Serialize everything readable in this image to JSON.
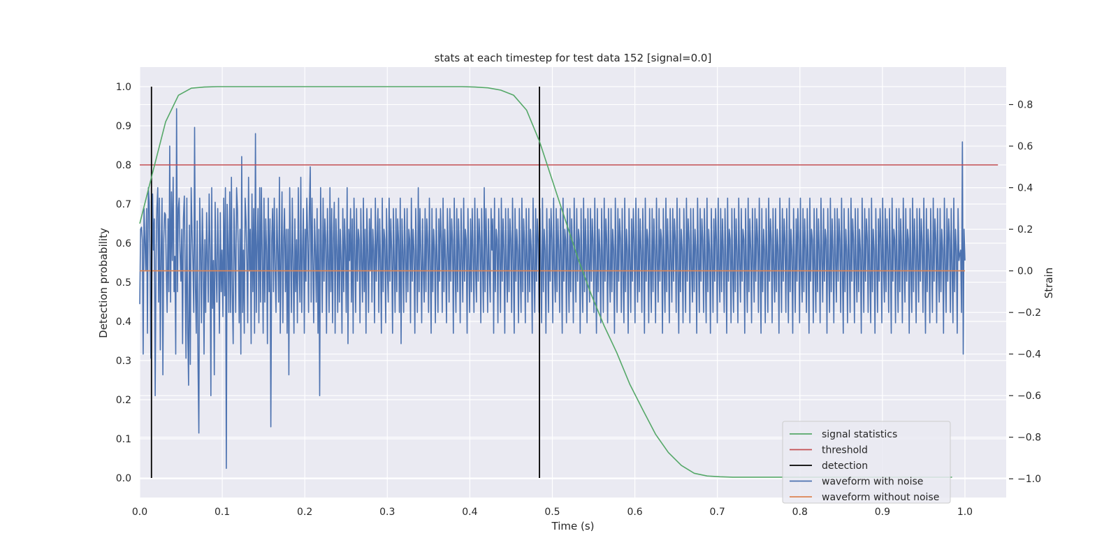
{
  "chart_data": {
    "type": "line",
    "title": "stats at each timestep for test data 152 [signal=0.0]",
    "xlabel": "Time (s)",
    "ylabel": "Detection probability",
    "y2label": "Strain",
    "xlim": [
      0.0,
      1.05
    ],
    "ylim": [
      -0.05,
      1.05
    ],
    "y2lim": [
      -1.09,
      0.98
    ],
    "xticks": [
      "0.0",
      "0.1",
      "0.2",
      "0.3",
      "0.4",
      "0.5",
      "0.6",
      "0.7",
      "0.8",
      "0.9",
      "1.0"
    ],
    "yticks": [
      "0.0",
      "0.1",
      "0.2",
      "0.3",
      "0.4",
      "0.5",
      "0.6",
      "0.7",
      "0.8",
      "0.9",
      "1.0"
    ],
    "y2ticks": [
      "−1.0",
      "−0.8",
      "−0.6",
      "−0.4",
      "−0.2",
      "0.0",
      "0.2",
      "0.4",
      "0.6",
      "0.8"
    ],
    "grid": true,
    "legend_position": "lower-right",
    "series": [
      {
        "name": "signal statistics",
        "axis": "left",
        "color": "#55a868",
        "x": [
          0.0,
          0.0156,
          0.0313,
          0.0469,
          0.0625,
          0.0781,
          0.0938,
          0.1094,
          0.125,
          0.1406,
          0.1563,
          0.1719,
          0.1875,
          0.2031,
          0.2188,
          0.2344,
          0.25,
          0.2656,
          0.2813,
          0.2969,
          0.3125,
          0.3281,
          0.3438,
          0.3594,
          0.375,
          0.3906,
          0.4063,
          0.4219,
          0.4375,
          0.4531,
          0.4688,
          0.4844,
          0.5,
          0.5156,
          0.5313,
          0.5469,
          0.5625,
          0.5781,
          0.5938,
          0.6094,
          0.625,
          0.6406,
          0.6563,
          0.6719,
          0.6875,
          0.7031,
          0.7188,
          0.7344,
          0.75,
          0.7656,
          0.7813,
          0.7969,
          0.8125,
          0.8281,
          0.8438,
          0.8594,
          0.875,
          0.8906,
          0.9063,
          0.9219,
          0.9375,
          0.9531,
          0.9688,
          0.9844
        ],
        "y": [
          0.65,
          0.78,
          0.91,
          0.978,
          0.996,
          0.999,
          1.0,
          1.0,
          1.0,
          1.0,
          1.0,
          1.0,
          1.0,
          1.0,
          1.0,
          1.0,
          1.0,
          1.0,
          1.0,
          1.0,
          1.0,
          1.0,
          1.0,
          1.0,
          1.0,
          1.0,
          0.999,
          0.997,
          0.991,
          0.978,
          0.94,
          0.86,
          0.76,
          0.66,
          0.56,
          0.47,
          0.39,
          0.32,
          0.24,
          0.175,
          0.112,
          0.065,
          0.032,
          0.012,
          0.005,
          0.003,
          0.002,
          0.002,
          0.002,
          0.002,
          0.002,
          0.002,
          0.002,
          0.002,
          0.002,
          0.002,
          0.002,
          0.002,
          0.002,
          0.002,
          0.002,
          0.002,
          0.002,
          0.002
        ]
      },
      {
        "name": "threshold",
        "axis": "left",
        "color": "#c44e52",
        "x": [
          0.0,
          1.04
        ],
        "y": [
          0.8,
          0.8
        ]
      },
      {
        "name": "detection",
        "axis": "left",
        "color": "#000000",
        "x_markers": [
          0.0142,
          0.4844
        ],
        "y_range": [
          0.0,
          1.0
        ]
      },
      {
        "name": "waveform with noise",
        "axis": "right",
        "color": "#4c72b0",
        "x_range": [
          0.0,
          1.0
        ],
        "y": [
          -0.16,
          0.2,
          0.21,
          0.15,
          -0.4,
          0.3,
          0.14,
          0.0,
          0.3,
          -0.3,
          0.4,
          0.33,
          0.07,
          -0.42,
          -0.1,
          0.37,
          0.1,
          0.25,
          -0.6,
          0.05,
          0.3,
          0.4,
          -0.15,
          0.35,
          -0.38,
          0.1,
          0.35,
          -0.5,
          0.15,
          0.28,
          0.27,
          0.0,
          -0.2,
          0.25,
          -0.1,
          0.6,
          -0.15,
          0.38,
          0.05,
          0.45,
          -0.1,
          0.07,
          -0.4,
          0.78,
          -0.1,
          0.3,
          0.35,
          0.1,
          -0.05,
          0.2,
          -0.35,
          0.25,
          0.36,
          -0.02,
          -0.42,
          0.35,
          -0.3,
          -0.55,
          0.22,
          -0.45,
          0.4,
          0.2,
          0.05,
          -0.2,
          0.69,
          -0.08,
          -0.3,
          0.24,
          -0.45,
          -0.78,
          0.35,
          0.1,
          -0.25,
          0.3,
          0.1,
          -0.4,
          0.15,
          -0.2,
          0.28,
          0.06,
          -0.15,
          0.37,
          0.1,
          -0.6,
          0.4,
          -0.18,
          0.05,
          -0.5,
          0.33,
          0.02,
          -0.15,
          0.3,
          0.05,
          -0.3,
          0.28,
          -0.1,
          0.1,
          -0.22,
          0.35,
          -0.12,
          0.4,
          -0.95,
          0.32,
          0.13,
          -0.2,
          0.38,
          -0.2,
          0.45,
          -0.1,
          -0.35,
          0.3,
          0.1,
          -0.2,
          0.4,
          0.3,
          0.1,
          -0.25,
          0.2,
          -0.4,
          0.55,
          -0.2,
          0.1,
          -0.3,
          0.35,
          0.24,
          0.05,
          -0.25,
          0.45,
          0.0,
          0.2,
          -0.35,
          0.37,
          -0.1,
          0.3,
          -0.3,
          0.66,
          -0.2,
          0.12,
          0.3,
          -0.25,
          0.4,
          -0.15,
          0.4,
          0.05,
          -0.3,
          0.35,
          -0.15,
          0.25,
          0.1,
          -0.35,
          0.35,
          -0.1,
          0.25,
          -0.75,
          0.15,
          0.3,
          -0.1,
          0.35,
          0.0,
          -0.2,
          0.3,
          0.1,
          -0.15,
          0.45,
          -0.3,
          0.05,
          0.38,
          -0.25,
          0.15,
          0.3,
          -0.1,
          0.2,
          -0.3,
          0.2,
          -0.5,
          0.4,
          0.1,
          -0.2,
          0.35,
          0.05,
          -0.3,
          0.25,
          -0.1,
          0.15,
          -0.25,
          0.4,
          0.0,
          -0.15,
          0.45,
          -0.2,
          0.1,
          0.3,
          -0.3,
          0.2,
          -0.05,
          0.35,
          0.15,
          -0.2,
          0.3,
          0.5,
          -0.15,
          0.35,
          0.05,
          -0.25,
          0.25,
          0.1,
          -0.15,
          0.3,
          -0.3,
          0.2,
          -0.6,
          0.4,
          0.1,
          -0.2,
          0.35,
          -0.05,
          0.25,
          0.15,
          -0.3,
          0.3,
          0.05,
          -0.2,
          0.4,
          -0.1,
          0.3,
          -0.25,
          0.15,
          0.33,
          -0.3,
          0.25,
          0.1,
          -0.2,
          0.35,
          -0.15,
          0.2,
          0.05,
          -0.3,
          0.3,
          -0.1,
          0.25,
          0.1,
          -0.2,
          0.4,
          -0.35,
          0.2,
          0.05,
          0.3,
          -0.15,
          0.25,
          -0.3,
          0.35,
          0.1,
          -0.2,
          0.3,
          -0.05,
          0.2,
          0.15,
          -0.25,
          0.3,
          0.05,
          -0.15,
          0.35,
          -0.1,
          0.2,
          -0.3,
          0.3,
          0.1,
          -0.2,
          0.25,
          0.0,
          0.3,
          -0.15,
          0.2,
          0.1,
          -0.25,
          0.35,
          -0.05,
          0.15,
          0.3,
          -0.2,
          0.25,
          0.05,
          -0.3,
          0.35,
          -0.1,
          0.2,
          0.15,
          -0.25,
          0.3,
          0.0,
          -0.15,
          0.35,
          -0.05,
          0.25,
          0.1,
          -0.3,
          0.3,
          0.05,
          -0.2,
          0.3,
          -0.1,
          0.25,
          0.15,
          -0.2,
          0.35,
          -0.35,
          0.25,
          0.1,
          -0.2,
          0.3,
          0.05,
          -0.15,
          0.3,
          -0.1,
          0.2,
          0.15,
          -0.25,
          0.35,
          -0.05,
          0.2,
          0.1,
          -0.3,
          0.3,
          0.05,
          -0.2,
          0.4,
          -0.1,
          0.3,
          0.1,
          -0.25,
          0.25,
          0.0,
          -0.15,
          0.3,
          -0.1,
          0.25,
          0.15,
          -0.2,
          0.35,
          0.05,
          -0.3,
          0.3,
          -0.1,
          0.2,
          0.1,
          -0.25,
          0.3,
          0.05,
          -0.2,
          0.25,
          -0.05,
          0.3,
          0.15,
          -0.2,
          0.35,
          -0.1,
          0.2,
          0.05,
          -0.25,
          0.3,
          0.1,
          -0.15,
          0.3,
          -0.05,
          0.25,
          0.15,
          -0.3,
          0.35,
          0.0,
          -0.2,
          0.3,
          -0.1,
          0.25,
          0.1,
          -0.25,
          0.3,
          0.05,
          -0.15,
          0.35,
          -0.05,
          0.2,
          0.15,
          -0.3,
          0.3,
          0.05,
          -0.2,
          0.25,
          -0.1,
          0.3,
          0.1,
          -0.2,
          0.35,
          0.0,
          -0.15,
          0.3,
          -0.05,
          0.25,
          0.15,
          -0.25,
          0.3,
          0.05,
          -0.2,
          0.4,
          -0.1,
          0.3,
          0.1,
          -0.2,
          0.25,
          0.0,
          -0.15,
          0.3,
          0.1,
          0.25,
          -0.3,
          0.35,
          -0.1,
          0.2,
          0.15,
          -0.25,
          0.3,
          0.05,
          -0.2,
          0.35,
          -0.05,
          0.25,
          0.1,
          -0.3,
          0.3,
          0.0,
          -0.15,
          0.3,
          -0.1,
          0.25,
          0.15,
          -0.2,
          0.35,
          0.05,
          -0.3,
          0.3,
          -0.05,
          0.2,
          0.1,
          -0.25,
          0.3,
          0.0,
          -0.2,
          0.35,
          -0.1,
          0.25,
          0.15,
          -0.25,
          0.3,
          0.05,
          -0.15,
          0.3,
          -0.1,
          0.2,
          0.1,
          -0.3,
          0.35,
          0.0,
          -0.2,
          0.3,
          -0.05,
          0.25,
          0.15,
          -0.2,
          0.3,
          0.05,
          -0.25,
          0.35,
          -0.1,
          0.2,
          0.1,
          -0.3,
          0.3,
          0.05,
          -0.2,
          0.25,
          -0.05,
          0.3,
          0.15,
          -0.25,
          0.35,
          0.0,
          -0.15,
          0.3,
          -0.1,
          0.25,
          0.1,
          -0.2,
          0.3,
          0.05,
          -0.3,
          0.35,
          -0.05,
          0.2,
          0.15,
          -0.25,
          0.3,
          0.0,
          -0.2,
          0.3,
          -0.1,
          0.25,
          0.1,
          -0.25,
          0.35,
          0.05,
          -0.15,
          0.3,
          -0.05,
          0.2,
          0.15,
          -0.3,
          0.3,
          0.0,
          -0.2,
          0.35,
          -0.1,
          0.25,
          0.1,
          -0.25,
          0.3,
          0.05,
          -0.15,
          0.3,
          -0.05,
          0.25,
          0.15,
          -0.2,
          0.35,
          0.0,
          -0.3,
          0.3,
          -0.1,
          0.2,
          0.1,
          -0.25,
          0.3,
          0.05,
          -0.2,
          0.35,
          -0.05,
          0.25,
          0.15,
          -0.25,
          0.3,
          0.0,
          -0.15,
          0.3,
          -0.1,
          0.2,
          0.1,
          -0.3,
          0.35,
          0.05,
          -0.2,
          0.3,
          -0.05,
          0.25,
          0.15,
          -0.2,
          0.3,
          0.0,
          -0.25,
          0.35,
          -0.1,
          0.2,
          0.1,
          -0.3,
          0.3,
          0.05,
          -0.2,
          0.25,
          -0.05,
          0.3,
          0.15,
          -0.25,
          0.35,
          0.0,
          -0.15,
          0.3,
          -0.1,
          0.25,
          0.1,
          -0.2,
          0.3,
          0.05,
          -0.3,
          0.35,
          -0.05,
          0.2,
          0.15,
          -0.25,
          0.3,
          0.0,
          -0.2,
          0.3,
          -0.1,
          0.25,
          0.1,
          -0.25,
          0.35,
          0.05,
          -0.15,
          0.3,
          -0.05,
          0.2,
          0.15,
          -0.3,
          0.3,
          0.0,
          -0.2,
          0.35,
          -0.1,
          0.25,
          0.1,
          -0.25,
          0.3,
          0.05,
          -0.15,
          0.3,
          -0.05,
          0.25,
          0.15,
          -0.2,
          0.35,
          0.0,
          -0.3,
          0.3,
          -0.1,
          0.2,
          0.1,
          -0.25,
          0.3,
          0.05,
          -0.2,
          0.35,
          -0.05,
          0.25,
          0.15,
          -0.25,
          0.3,
          0.0,
          -0.15,
          0.3,
          -0.1,
          0.2,
          0.1,
          -0.3,
          0.35,
          0.05,
          -0.2,
          0.3,
          -0.05,
          0.25,
          0.15,
          -0.2,
          0.3,
          0.0,
          -0.25,
          0.35,
          -0.1,
          0.2,
          0.1,
          -0.3,
          0.3,
          0.05,
          -0.2,
          0.25,
          -0.05,
          0.3,
          0.15,
          -0.25,
          0.35,
          0.0,
          -0.15,
          0.3,
          -0.1,
          0.25,
          0.1,
          -0.2,
          0.3,
          0.05,
          -0.3,
          0.35,
          -0.05,
          0.2,
          0.15,
          -0.25,
          0.3,
          0.0,
          -0.2,
          0.3,
          -0.1,
          0.25,
          0.1,
          -0.25,
          0.35,
          0.05,
          -0.15,
          0.3,
          -0.05,
          0.2,
          0.15,
          -0.3,
          0.3,
          0.0,
          -0.2,
          0.35,
          -0.1,
          0.25,
          0.1,
          -0.25,
          0.3,
          0.05,
          -0.15,
          0.3,
          -0.05,
          0.25,
          0.15,
          -0.2,
          0.35,
          0.0,
          -0.3,
          0.3,
          -0.1,
          0.2,
          0.1,
          -0.25,
          0.3,
          0.05,
          -0.2,
          0.35,
          -0.05,
          0.25,
          0.15,
          -0.25,
          0.3,
          0.0,
          -0.15,
          0.3,
          -0.1,
          0.2,
          0.1,
          -0.3,
          0.35,
          0.05,
          -0.2,
          0.3,
          -0.05,
          0.25,
          0.15,
          -0.2,
          0.3,
          0.0,
          -0.25,
          0.35,
          -0.1,
          0.2,
          0.1,
          -0.3,
          0.3,
          0.05,
          -0.2,
          0.25,
          -0.05,
          0.3,
          0.15,
          -0.25,
          0.35,
          0.0,
          -0.15,
          0.3,
          -0.1,
          0.25,
          0.1,
          -0.2,
          0.3,
          0.05,
          -0.3,
          0.35,
          -0.05,
          0.2,
          0.15,
          -0.25,
          0.3,
          0.0,
          -0.2,
          0.3,
          -0.1,
          0.25,
          0.1,
          -0.25,
          0.35,
          0.05,
          -0.15,
          0.3,
          -0.05,
          0.2,
          0.15,
          -0.3,
          0.3,
          0.0,
          -0.2,
          0.35,
          -0.1,
          0.25,
          0.1,
          -0.25,
          0.3,
          0.05,
          -0.15,
          0.3,
          -0.05,
          0.25,
          0.15,
          -0.2,
          0.35,
          0.0,
          -0.3,
          0.3,
          -0.1,
          0.2,
          0.1,
          -0.25,
          0.3,
          0.05,
          -0.2,
          0.35,
          -0.05,
          0.25,
          0.15,
          -0.25,
          0.3,
          0.0,
          -0.15,
          0.3,
          -0.1,
          0.2,
          0.1,
          -0.3,
          0.35,
          0.05,
          -0.2,
          0.3,
          -0.05,
          0.25,
          0.15,
          -0.2,
          0.3,
          0.0,
          -0.25,
          0.35,
          -0.1,
          0.2,
          0.1,
          -0.3,
          0.3,
          0.05,
          -0.2,
          0.25,
          -0.05,
          0.3,
          0.15,
          -0.25,
          0.35,
          0.0,
          -0.15,
          0.3,
          -0.1,
          0.25,
          0.1,
          -0.2,
          0.3,
          0.05,
          -0.3,
          0.35,
          -0.05,
          0.2,
          0.15,
          -0.25,
          0.3,
          0.0,
          -0.2,
          0.3,
          -0.1,
          0.25,
          0.1,
          -0.25,
          0.35,
          0.05,
          -0.15,
          0.3,
          -0.05,
          0.2,
          0.15,
          -0.3,
          0.3,
          0.0,
          -0.2,
          0.35,
          -0.1,
          0.25,
          0.1,
          -0.25,
          0.3,
          0.05,
          -0.15,
          0.3,
          -0.05,
          0.25,
          0.15,
          -0.2,
          0.35,
          0.0,
          -0.3,
          0.3,
          -0.1,
          0.2,
          0.1,
          -0.25,
          0.3,
          0.05,
          -0.2,
          0.35,
          -0.05,
          0.25,
          0.15,
          -0.25,
          0.3,
          0.0,
          -0.15,
          0.3,
          -0.1,
          0.2,
          0.1,
          -0.3,
          0.35,
          0.05,
          -0.2,
          0.3,
          -0.05,
          0.25,
          0.15,
          -0.2,
          0.3,
          0.0,
          -0.25,
          0.35,
          -0.1,
          0.2,
          0.1,
          -0.3,
          0.3,
          0.05,
          0.08,
          0.1,
          -0.2,
          0.62,
          -0.4,
          0.2,
          0.05
        ]
      },
      {
        "name": "waveform without noise",
        "axis": "right",
        "color": "#dd8452",
        "x": [
          0.0,
          1.0
        ],
        "y": [
          0.0,
          0.0
        ]
      }
    ]
  }
}
